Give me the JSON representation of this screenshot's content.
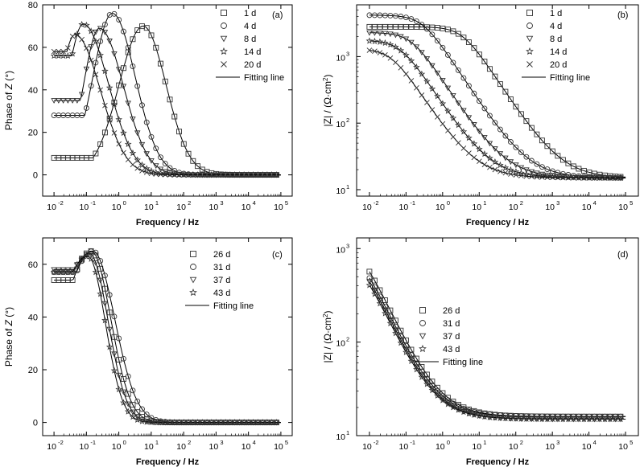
{
  "chart_data": [
    {
      "panel": "(a)",
      "type": "scatter",
      "xlabel": "Frequency / Hz",
      "ylabel_prefix": "Phase of ",
      "ylabel_var": "Z",
      "ylabel_suffix": " (°)",
      "xscale": "log",
      "xlim": [
        0.01,
        100000
      ],
      "ylim": [
        -10,
        80
      ],
      "xticks": [
        {
          "v": 0.01,
          "m": "10",
          "e": "-2"
        },
        {
          "v": 0.1,
          "m": "10",
          "e": "-1"
        },
        {
          "v": 1,
          "m": "10",
          "e": "0"
        },
        {
          "v": 10,
          "m": "10",
          "e": "1"
        },
        {
          "v": 100,
          "m": "10",
          "e": "2"
        },
        {
          "v": 1000,
          "m": "10",
          "e": "3"
        },
        {
          "v": 10000,
          "m": "10",
          "e": "4"
        },
        {
          "v": 100000,
          "m": "10",
          "e": "5"
        }
      ],
      "yticks": [
        "0",
        "20",
        "40",
        "60",
        "80"
      ],
      "legend_position": "top-right",
      "legend_fit_label": "Fitting line",
      "series": [
        {
          "name": "1 d",
          "marker": "square",
          "peak": 70,
          "peak_log_f": 0.75,
          "left_width": 1.05,
          "right_width": 1.0,
          "lf_value": 8
        },
        {
          "name": "4 d",
          "marker": "circle",
          "peak": 76,
          "peak_log_f": -0.2,
          "left_width": 0.85,
          "right_width": 1.0,
          "lf_value": 28
        },
        {
          "name": "8 d",
          "marker": "triangle",
          "peak": 69,
          "peak_log_f": -0.6,
          "left_width": 0.7,
          "right_width": 1.05,
          "lf_value": 35
        },
        {
          "name": "14 d",
          "marker": "star",
          "peak": 71,
          "peak_log_f": -1.1,
          "left_width": 0.7,
          "right_width": 1.1,
          "lf_value": 56
        },
        {
          "name": "20 d",
          "marker": "cross",
          "peak": 66,
          "peak_log_f": -1.35,
          "left_width": 0.7,
          "right_width": 1.1,
          "lf_value": 58
        }
      ]
    },
    {
      "panel": "(b)",
      "type": "scatter",
      "xlabel": "Frequency / Hz",
      "ylabel_main": "|Z| / (Ω·cm",
      "ylabel_sup": "2",
      "ylabel_end": ")",
      "xscale": "log",
      "yscale": "log",
      "xlim": [
        0.01,
        100000
      ],
      "ylim": [
        8,
        6000
      ],
      "xticks": [
        {
          "v": 0.01,
          "m": "10",
          "e": "-2"
        },
        {
          "v": 0.1,
          "m": "10",
          "e": "-1"
        },
        {
          "v": 1,
          "m": "10",
          "e": "0"
        },
        {
          "v": 10,
          "m": "10",
          "e": "1"
        },
        {
          "v": 100,
          "m": "10",
          "e": "2"
        },
        {
          "v": 1000,
          "m": "10",
          "e": "3"
        },
        {
          "v": 10000,
          "m": "10",
          "e": "4"
        },
        {
          "v": 100000,
          "m": "10",
          "e": "5"
        }
      ],
      "yticks": [
        {
          "v": 10,
          "m": "10",
          "e": "1"
        },
        {
          "v": 100,
          "m": "10",
          "e": "2"
        },
        {
          "v": 1000,
          "m": "10",
          "e": "3"
        }
      ],
      "legend_position": "top-right",
      "legend_fit_label": "Fitting line",
      "series": [
        {
          "name": "1 d",
          "marker": "square",
          "R_low": 2800,
          "R_s": 15,
          "log_f_c": 0.55
        },
        {
          "name": "4 d",
          "marker": "circle",
          "R_low": 4200,
          "R_s": 15,
          "log_f_c": -0.55
        },
        {
          "name": "8 d",
          "marker": "triangle",
          "R_low": 2300,
          "R_s": 15,
          "log_f_c": -0.85
        },
        {
          "name": "14 d",
          "marker": "star",
          "R_low": 1750,
          "R_s": 15,
          "log_f_c": -1.15
        },
        {
          "name": "20 d",
          "marker": "cross",
          "R_low": 1300,
          "R_s": 15,
          "log_f_c": -1.4
        }
      ]
    },
    {
      "panel": "(c)",
      "type": "scatter",
      "xlabel": "Frequency / Hz",
      "ylabel_prefix": "Phase of ",
      "ylabel_var": "Z",
      "ylabel_suffix": " (°)",
      "xscale": "log",
      "xlim": [
        0.01,
        100000
      ],
      "ylim": [
        -5,
        70
      ],
      "xticks": [
        {
          "v": 0.01,
          "m": "10",
          "e": "-2"
        },
        {
          "v": 0.1,
          "m": "10",
          "e": "-1"
        },
        {
          "v": 1,
          "m": "10",
          "e": "0"
        },
        {
          "v": 10,
          "m": "10",
          "e": "1"
        },
        {
          "v": 100,
          "m": "10",
          "e": "2"
        },
        {
          "v": 1000,
          "m": "10",
          "e": "3"
        },
        {
          "v": 10000,
          "m": "10",
          "e": "4"
        },
        {
          "v": 100000,
          "m": "10",
          "e": "5"
        }
      ],
      "yticks": [
        "0",
        "20",
        "40",
        "60"
      ],
      "legend_position": "top-right",
      "legend_fit_label": "Fitting line",
      "series": [
        {
          "name": "26 d",
          "marker": "square",
          "peak": 65,
          "peak_log_f": -0.85,
          "left_width": 1.3,
          "right_width": 0.85,
          "lf_value": 54
        },
        {
          "name": "31 d",
          "marker": "circle",
          "peak": 65,
          "peak_log_f": -0.8,
          "left_width": 1.4,
          "right_width": 0.95,
          "lf_value": 57
        },
        {
          "name": "37 d",
          "marker": "triangle",
          "peak": 64,
          "peak_log_f": -0.9,
          "left_width": 1.5,
          "right_width": 0.8,
          "lf_value": 58
        },
        {
          "name": "43 d",
          "marker": "star",
          "peak": 63,
          "peak_log_f": -0.95,
          "left_width": 1.5,
          "right_width": 0.75,
          "lf_value": 57
        }
      ]
    },
    {
      "panel": "(d)",
      "type": "scatter",
      "xlabel": "Frequency / Hz",
      "ylabel_main": "|Z| / (Ω·cm",
      "ylabel_sup": "2",
      "ylabel_end": ")",
      "xscale": "log",
      "yscale": "log",
      "xlim": [
        0.01,
        100000
      ],
      "ylim": [
        10,
        1300
      ],
      "xticks": [
        {
          "v": 0.01,
          "m": "10",
          "e": "-2"
        },
        {
          "v": 0.1,
          "m": "10",
          "e": "-1"
        },
        {
          "v": 1,
          "m": "10",
          "e": "0"
        },
        {
          "v": 10,
          "m": "10",
          "e": "1"
        },
        {
          "v": 100,
          "m": "10",
          "e": "2"
        },
        {
          "v": 1000,
          "m": "10",
          "e": "3"
        },
        {
          "v": 10000,
          "m": "10",
          "e": "4"
        },
        {
          "v": 100000,
          "m": "10",
          "e": "5"
        }
      ],
      "yticks": [
        {
          "v": 10,
          "m": "10",
          "e": "1"
        },
        {
          "v": 100,
          "m": "10",
          "e": "2"
        },
        {
          "v": 1000,
          "m": "10",
          "e": "3"
        }
      ],
      "legend_position": "center",
      "legend_fit_label": "Fitting line",
      "series": [
        {
          "name": "26 d",
          "marker": "square",
          "R_low": 1150,
          "R_s": 16,
          "log_f_c": -2.3
        },
        {
          "name": "31 d",
          "marker": "circle",
          "R_low": 980,
          "R_s": 16,
          "log_f_c": -2.3
        },
        {
          "name": "37 d",
          "marker": "triangle",
          "R_low": 900,
          "R_s": 15,
          "log_f_c": -2.3
        },
        {
          "name": "43 d",
          "marker": "star",
          "R_low": 820,
          "R_s": 15,
          "log_f_c": -2.3
        }
      ]
    }
  ]
}
